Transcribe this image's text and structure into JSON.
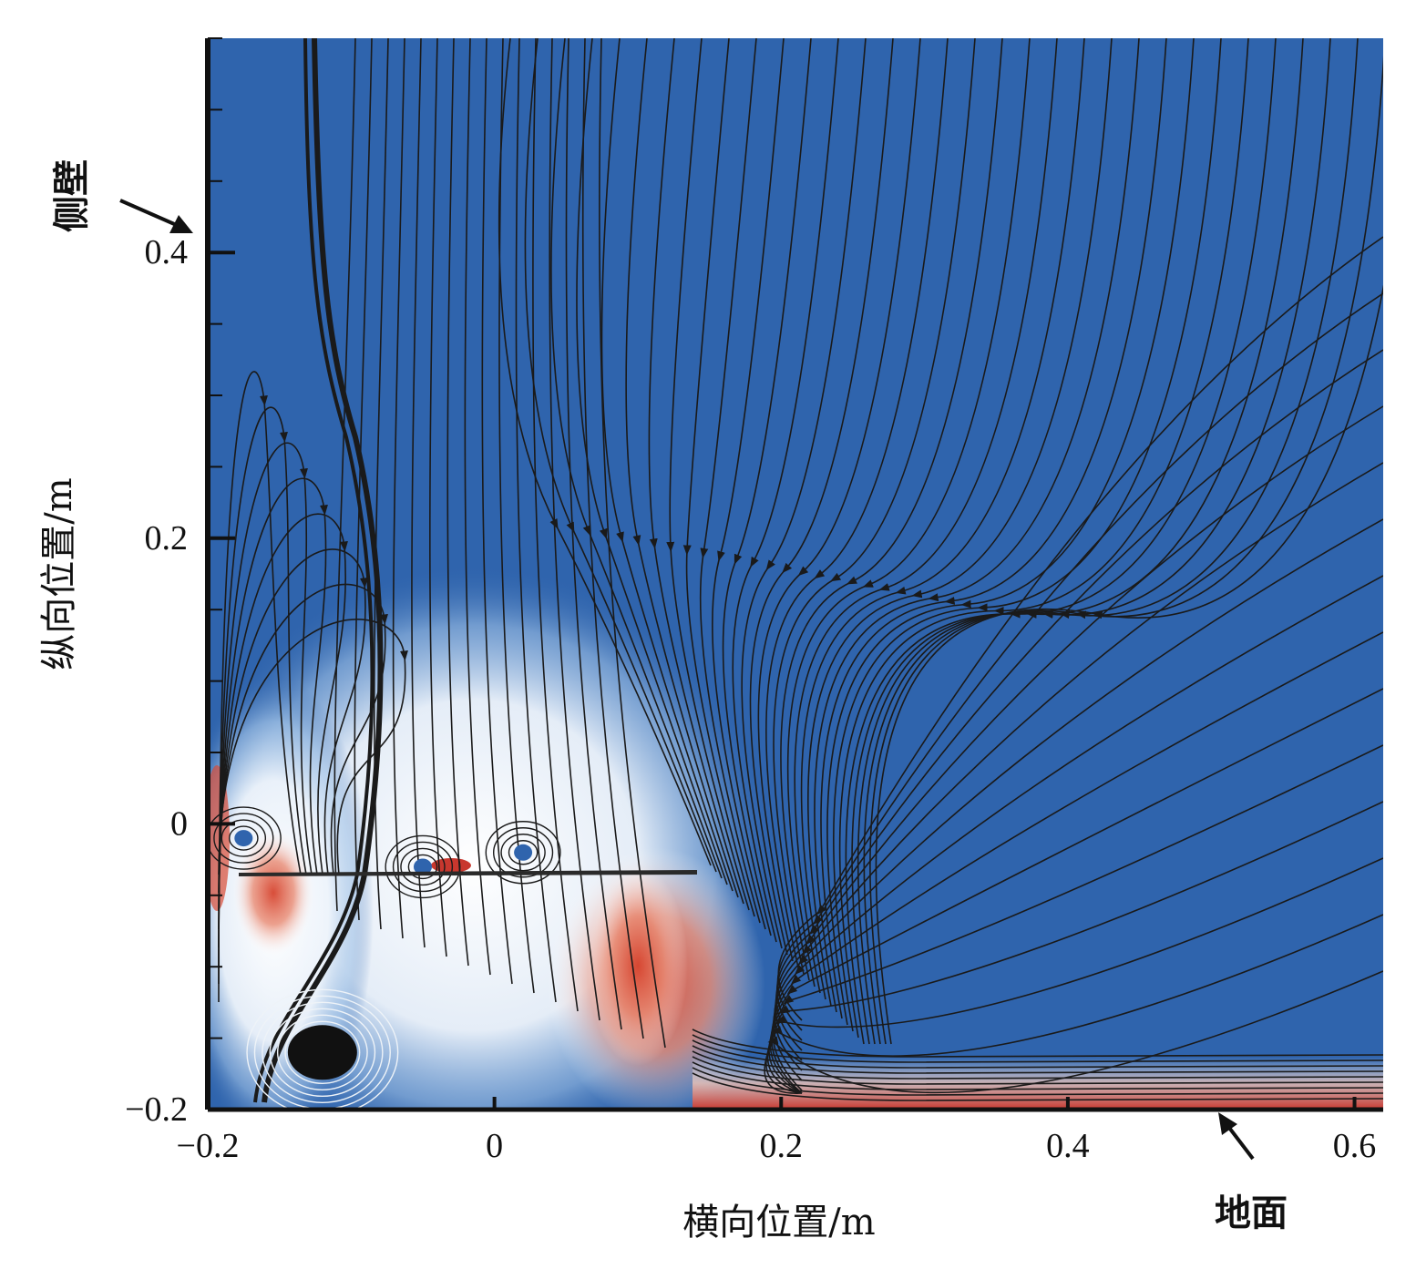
{
  "chart_data": {
    "type": "heatmap",
    "title": "",
    "xlabel": "横向位置/m",
    "ylabel": "纵向位置/m",
    "xlim": [
      -0.2,
      0.62
    ],
    "ylim": [
      -0.2,
      0.55
    ],
    "xticks": [
      -0.2,
      0,
      0.2,
      0.4,
      0.6
    ],
    "yticks": [
      -0.2,
      0,
      0.2,
      0.4
    ],
    "xtick_labels": [
      "−0.2",
      "0",
      "0.2",
      "0.4",
      "0.6"
    ],
    "ytick_labels": [
      "−0.2",
      "0",
      "0.2",
      "0.4"
    ],
    "grid": false,
    "annotations": [
      {
        "text": "侧壁",
        "points_to": [
          -0.2,
          0.45
        ]
      },
      {
        "text": "地面",
        "points_to": [
          0.5,
          -0.2
        ]
      }
    ],
    "vortices": [
      {
        "x": -0.12,
        "y": -0.16
      },
      {
        "x": 0.02,
        "y": -0.02
      },
      {
        "x": -0.05,
        "y": -0.03
      },
      {
        "x": -0.175,
        "y": -0.01
      }
    ],
    "colors": {
      "background": "#2f64ad",
      "high": "#c8372e",
      "neutral": "#ffffff",
      "streamline": "#1a1a1a"
    }
  }
}
